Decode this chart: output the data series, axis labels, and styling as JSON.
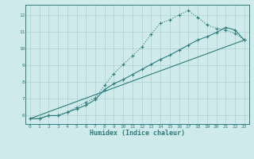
{
  "xlabel": "Humidex (Indice chaleur)",
  "background_color": "#ceeaea",
  "grid_color": "#b8d8d8",
  "line_color": "#2d7d7d",
  "xlim": [
    -0.5,
    23.5
  ],
  "ylim": [
    5.5,
    12.6
  ],
  "yticks": [
    6,
    7,
    8,
    9,
    10,
    11,
    12
  ],
  "xticks": [
    0,
    1,
    2,
    3,
    4,
    5,
    6,
    7,
    8,
    9,
    10,
    11,
    12,
    13,
    14,
    15,
    16,
    17,
    18,
    19,
    20,
    21,
    22,
    23
  ],
  "line1_x": [
    0,
    1,
    2,
    3,
    4,
    5,
    6,
    7,
    8,
    9,
    10,
    11,
    12,
    13,
    14,
    15,
    16,
    17,
    18,
    19,
    20,
    21,
    22,
    23
  ],
  "line1_y": [
    5.82,
    5.82,
    6.0,
    6.0,
    6.2,
    6.5,
    6.8,
    7.05,
    7.8,
    8.5,
    9.05,
    9.55,
    10.1,
    10.85,
    11.5,
    11.7,
    12.0,
    12.25,
    11.85,
    11.4,
    11.2,
    11.1,
    10.9,
    10.5
  ],
  "line2_x": [
    0,
    1,
    2,
    3,
    4,
    5,
    6,
    7,
    8,
    9,
    10,
    11,
    12,
    13,
    14,
    15,
    16,
    17,
    18,
    19,
    20,
    21,
    22,
    23
  ],
  "line2_y": [
    5.82,
    5.82,
    6.0,
    6.0,
    6.2,
    6.4,
    6.62,
    6.95,
    7.55,
    7.9,
    8.15,
    8.45,
    8.75,
    9.05,
    9.35,
    9.6,
    9.9,
    10.2,
    10.5,
    10.7,
    10.95,
    11.25,
    11.1,
    10.5
  ],
  "line3_x": [
    0,
    23
  ],
  "line3_y": [
    5.82,
    10.5
  ]
}
